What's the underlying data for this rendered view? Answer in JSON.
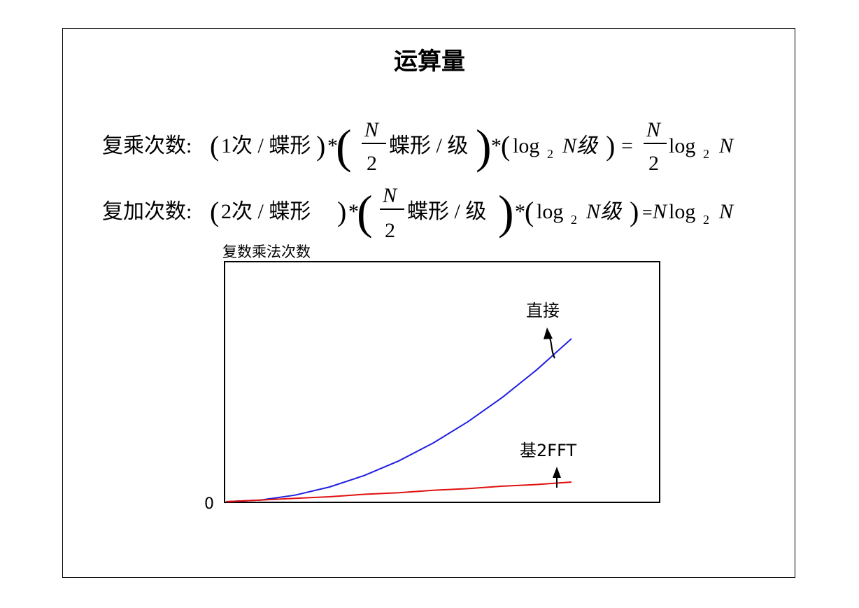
{
  "title": "运算量",
  "mult": {
    "label": "复乘次数:",
    "p1": "1次 / 蝶形",
    "star": "*",
    "frac_num": "N",
    "frac_den": "2",
    "mid": "蝶形 / 级",
    "log": "log",
    "sub": "2",
    "stage": "N级",
    "eq": "=",
    "res_num": "N",
    "res_den": "2",
    "res_log": "log",
    "res_sub": "2",
    "res_N": "N"
  },
  "add": {
    "label": "复加次数:",
    "p1": "2次 / 蝶形",
    "star": "*",
    "frac_num": "N",
    "frac_den": "2",
    "mid": "蝶形 / 级",
    "log": "log",
    "sub": "2",
    "stage": "N级",
    "eq": "=",
    "res_N": "N",
    "res_log": "log",
    "res_sub": "2",
    "res_N2": "N"
  },
  "chart": {
    "ylabel": "复数乘法次数",
    "origin_label": "0",
    "annotations": {
      "direct": "直接",
      "fft": "基2FFT"
    },
    "colors": {
      "direct": "#2020e0",
      "fft": "#e01010"
    }
  },
  "chart_data": {
    "type": "line",
    "ylabel": "复数乘法次数",
    "xlabel": "",
    "grid": false,
    "series": [
      {
        "name": "直接",
        "x": [
          0,
          0.1,
          0.2,
          0.3,
          0.4,
          0.5,
          0.6,
          0.7,
          0.8,
          0.9,
          1.0
        ],
        "values": [
          0,
          0.01,
          0.04,
          0.09,
          0.16,
          0.25,
          0.36,
          0.49,
          0.64,
          0.81,
          1.0
        ]
      },
      {
        "name": "基2FFT",
        "x": [
          0,
          0.1,
          0.2,
          0.3,
          0.4,
          0.5,
          0.6,
          0.7,
          0.8,
          0.9,
          1.0
        ],
        "values": [
          0,
          0.01,
          0.02,
          0.03,
          0.045,
          0.055,
          0.07,
          0.08,
          0.095,
          0.105,
          0.12
        ]
      }
    ]
  }
}
